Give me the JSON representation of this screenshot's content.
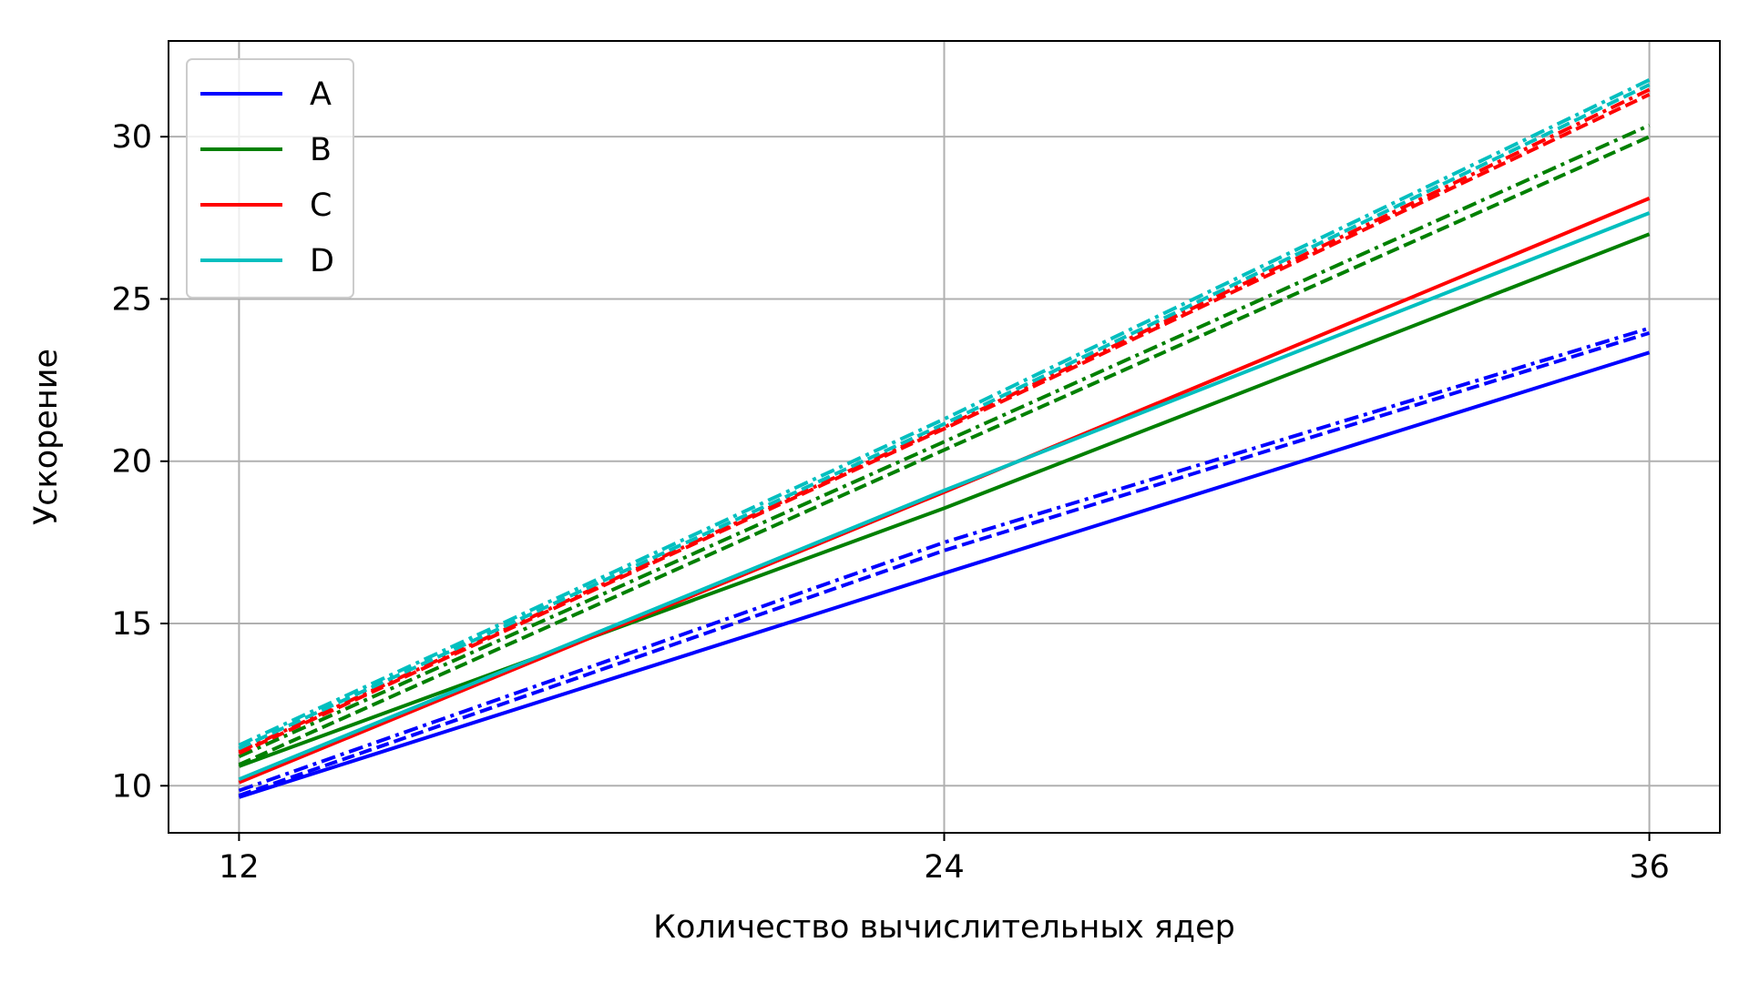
{
  "chart_data": {
    "type": "line",
    "title": "",
    "xlabel": "Количество вычислительных ядер",
    "ylabel": "Ускорение",
    "xlim": [
      10.8,
      37.2
    ],
    "ylim": [
      8.55,
      32.95
    ],
    "xticks": [
      12,
      24,
      36
    ],
    "yticks": [
      10,
      15,
      20,
      25,
      30
    ],
    "grid": true,
    "legend_position": "upper-left",
    "x": [
      12,
      24,
      36
    ],
    "series": [
      {
        "name": "A",
        "color": "#0000ff",
        "linestyle": "solid",
        "values": [
          9.65,
          16.55,
          23.35
        ]
      },
      {
        "name": "",
        "color": "#0000ff",
        "linestyle": "dashed",
        "values": [
          9.7,
          17.25,
          23.95
        ]
      },
      {
        "name": "",
        "color": "#0000ff",
        "linestyle": "dashdot",
        "values": [
          9.85,
          17.5,
          24.1
        ]
      },
      {
        "name": "B",
        "color": "#008000",
        "linestyle": "solid",
        "values": [
          10.6,
          18.55,
          27.0
        ]
      },
      {
        "name": "",
        "color": "#008000",
        "linestyle": "dashed",
        "values": [
          10.65,
          20.35,
          30.0
        ]
      },
      {
        "name": "",
        "color": "#008000",
        "linestyle": "dashdot",
        "values": [
          10.9,
          20.6,
          30.35
        ]
      },
      {
        "name": "C",
        "color": "#ff0000",
        "linestyle": "solid",
        "values": [
          10.1,
          19.05,
          28.1
        ]
      },
      {
        "name": "",
        "color": "#ff0000",
        "linestyle": "dashed",
        "values": [
          11.0,
          21.0,
          31.3
        ]
      },
      {
        "name": "",
        "color": "#ff0000",
        "linestyle": "dashdot",
        "values": [
          11.05,
          21.05,
          31.45
        ]
      },
      {
        "name": "D",
        "color": "#00bfbf",
        "linestyle": "solid",
        "values": [
          10.2,
          19.1,
          27.65
        ]
      },
      {
        "name": "",
        "color": "#00bfbf",
        "linestyle": "dashed",
        "values": [
          11.15,
          21.15,
          31.6
        ]
      },
      {
        "name": "",
        "color": "#00bfbf",
        "linestyle": "dashdot",
        "values": [
          11.25,
          21.3,
          31.75
        ]
      }
    ]
  }
}
